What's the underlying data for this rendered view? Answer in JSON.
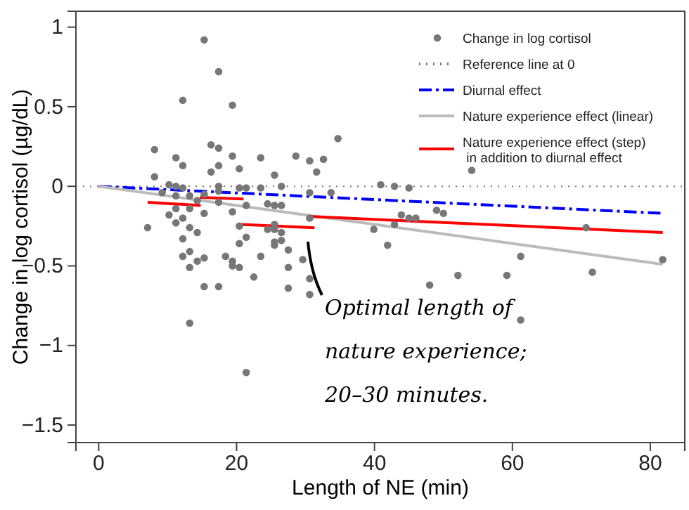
{
  "chart_data": {
    "type": "scatter",
    "xlabel": "Length of NE (min)",
    "ylabel": "Change in log cortisol (µg/dL)",
    "xlim": [
      -3.3,
      85
    ],
    "ylim": [
      -1.61,
      1.1
    ],
    "xticks": [
      0,
      20,
      40,
      60,
      80
    ],
    "yticks": [
      -1.5,
      -1,
      -0.5,
      0,
      0.5,
      1
    ],
    "legend": "top right",
    "grid": false,
    "ref_lines": [
      {
        "axis": "y",
        "value": 0,
        "label": "Reference line at 0",
        "color": "#777777",
        "line_style": "dotted"
      }
    ],
    "series": [
      {
        "name": "Change in log cortisol",
        "color": "#777777",
        "marker": "circle",
        "x": [
          15.3,
          17.4,
          12.2,
          19.4,
          34.7,
          8.1,
          16.3,
          17.4,
          11.2,
          19.4,
          23.5,
          28.6,
          30.6,
          32.6,
          12.2,
          17.4,
          16.3,
          20.4,
          31.6,
          8.1,
          25.5,
          10.2,
          11.2,
          12.2,
          17.4,
          17.4,
          20.4,
          21.4,
          23.5,
          26.5,
          9.2,
          11.2,
          13.2,
          15.3,
          30.6,
          33.7,
          14.3,
          17.4,
          21.4,
          24.5,
          25.5,
          26.5,
          11.2,
          13.2,
          10.2,
          15.3,
          19.4,
          12.2,
          30.6,
          11.2,
          13.2,
          7.1,
          14.3,
          20.4,
          25.5,
          25.5,
          24.5,
          26.5,
          21.4,
          12.2,
          26.5,
          20.4,
          25.5,
          25.5,
          27.5,
          13.2,
          12.2,
          15.3,
          18.4,
          23.5,
          29.6,
          14.3,
          19.4,
          19.4,
          20.4,
          13.2,
          27.5,
          22.5,
          30.6,
          15.3,
          17.4,
          27.5,
          30.6,
          13.2,
          21.4,
          54.1,
          40.9,
          42.9,
          45.0,
          43.9,
          45.0,
          46.0,
          49.0,
          50.0,
          42.9,
          39.9,
          41.9,
          61.2,
          70.7,
          81.8,
          52.1,
          48.0,
          59.2,
          71.6,
          61.2
        ],
        "values": [
          0.92,
          0.72,
          0.54,
          0.51,
          0.3,
          0.23,
          0.26,
          0.24,
          0.18,
          0.19,
          0.18,
          0.19,
          0.16,
          0.17,
          0.13,
          0.13,
          0.09,
          0.11,
          0.09,
          0.06,
          0.07,
          0.01,
          0.0,
          -0.01,
          0.0,
          -0.03,
          -0.01,
          -0.01,
          -0.01,
          0.0,
          -0.04,
          -0.06,
          -0.06,
          -0.05,
          -0.04,
          -0.04,
          -0.09,
          -0.1,
          -0.12,
          -0.11,
          -0.12,
          -0.12,
          -0.14,
          -0.14,
          -0.18,
          -0.17,
          -0.16,
          -0.2,
          -0.2,
          -0.23,
          -0.26,
          -0.26,
          -0.29,
          -0.25,
          -0.24,
          -0.27,
          -0.27,
          -0.29,
          -0.32,
          -0.33,
          -0.34,
          -0.36,
          -0.35,
          -0.37,
          -0.4,
          -0.41,
          -0.44,
          -0.45,
          -0.44,
          -0.44,
          -0.46,
          -0.47,
          -0.47,
          -0.5,
          -0.51,
          -0.51,
          -0.51,
          -0.57,
          -0.58,
          -0.63,
          -0.63,
          -0.64,
          -0.68,
          -0.86,
          -1.17,
          0.1,
          0.01,
          0.0,
          -0.01,
          -0.18,
          -0.2,
          -0.2,
          -0.15,
          -0.17,
          -0.24,
          -0.27,
          -0.37,
          -0.44,
          -0.26,
          -0.46,
          -0.56,
          -0.62,
          -0.56,
          -0.54,
          -0.84
        ]
      },
      {
        "type": "line",
        "name": "Diurnal effect",
        "color": "#0000ff",
        "line_style": "dashed",
        "x": [
          0,
          81.8
        ],
        "values": [
          0,
          -0.17
        ]
      },
      {
        "type": "line",
        "name": "Nature experience effect (linear)",
        "color": "#bbbbbb",
        "line_style": "solid",
        "x": [
          0,
          81.8
        ],
        "values": [
          0,
          -0.49
        ]
      },
      {
        "type": "line",
        "name": "Nature experience effect (step)\n in addition to diurnal effect",
        "color": "#ff0000",
        "line_style": "solid",
        "x": [
          30.9,
          81.8
        ],
        "values": [
          -0.19,
          -0.29
        ]
      },
      {
        "type": "line",
        "color": "#ff0000",
        "line_style": "solid",
        "x": [
          7.1,
          14.8
        ],
        "values": [
          -0.1,
          -0.12
        ]
      },
      {
        "type": "line",
        "color": "#ff0000",
        "line_style": "solid",
        "x": [
          14.7,
          21.0
        ],
        "values": [
          -0.07,
          -0.08
        ]
      },
      {
        "type": "line",
        "color": "#ff0000",
        "line_style": "solid",
        "x": [
          20.7,
          31.3
        ],
        "values": [
          -0.24,
          -0.26
        ]
      }
    ],
    "annotations": [
      "Optimal length of\nnature experience;\n20–30 minutes."
    ]
  }
}
